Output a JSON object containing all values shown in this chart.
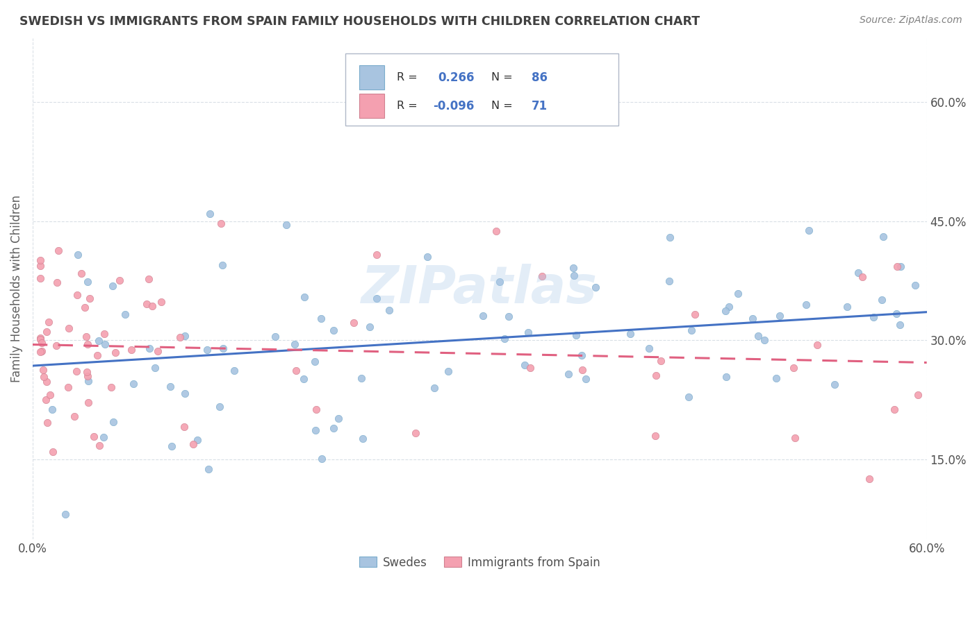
{
  "title": "SWEDISH VS IMMIGRANTS FROM SPAIN FAMILY HOUSEHOLDS WITH CHILDREN CORRELATION CHART",
  "source": "Source: ZipAtlas.com",
  "ylabel": "Family Households with Children",
  "legend_label1": "Swedes",
  "legend_label2": "Immigrants from Spain",
  "r1": 0.266,
  "n1": 86,
  "r2": -0.096,
  "n2": 71,
  "watermark": "ZIPatlas",
  "blue_color": "#a8c4e0",
  "pink_color": "#f4a0b0",
  "blue_line_color": "#4472c4",
  "pink_line_color": "#e06080",
  "title_color": "#404040",
  "source_color": "#808080",
  "background_color": "#ffffff",
  "grid_color": "#d0d8e0",
  "xlim": [
    0.0,
    0.6
  ],
  "ylim": [
    0.05,
    0.68
  ],
  "ytick_values": [
    0.15,
    0.3,
    0.45,
    0.6
  ],
  "ytick_labels": [
    "15.0%",
    "30.0%",
    "45.0%",
    "60.0%"
  ],
  "xtick_values": [
    0.0,
    0.6
  ],
  "xtick_labels": [
    "0.0%",
    "60.0%"
  ]
}
